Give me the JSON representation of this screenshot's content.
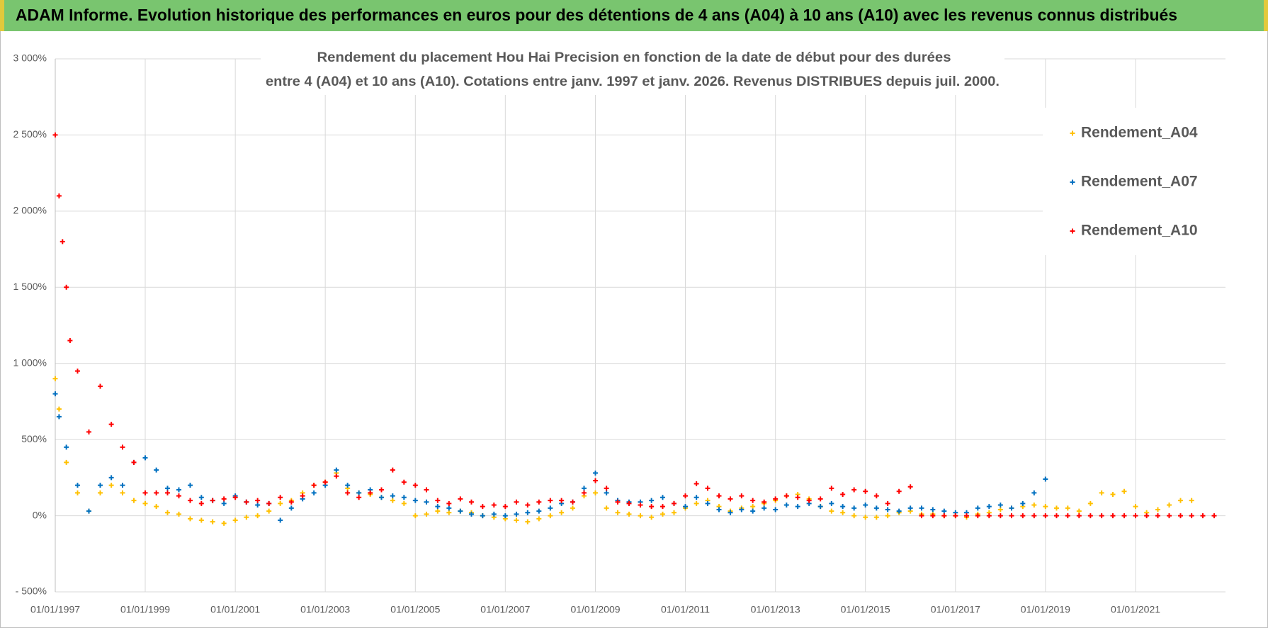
{
  "chart_data": {
    "type": "scatter",
    "title": "ADAM Informe. Evolution historique des performances en euros pour des détentions de 4 ans (A04) à 10 ans (A10) avec les revenus connus distribués",
    "subtitle": [
      "Rendement du placement Hou Hai Precision  en fonction de la date de début pour des durées",
      "entre 4 (A04) et 10 ans (A10).  Cotations entre janv. 1997 et janv. 2026. Revenus DISTRIBUES depuis juil. 2000."
    ],
    "xlim": [
      "01/01/1997",
      "01/01/2023"
    ],
    "xticks": [
      "01/01/1997",
      "01/01/1999",
      "01/01/2001",
      "01/01/2003",
      "01/01/2005",
      "01/01/2007",
      "01/01/2009",
      "01/01/2011",
      "01/01/2013",
      "01/01/2015",
      "01/01/2017",
      "01/01/2019",
      "01/01/2021"
    ],
    "ylim": [
      -500,
      3000
    ],
    "yticks": [
      {
        "value": -500,
        "label": "- 500%"
      },
      {
        "value": 0,
        "label": "0%"
      },
      {
        "value": 500,
        "label": "500%"
      },
      {
        "value": 1000,
        "label": "1 000%"
      },
      {
        "value": 1500,
        "label": "1 500%"
      },
      {
        "value": 2000,
        "label": "2 000%"
      },
      {
        "value": 2500,
        "label": "2 500%"
      },
      {
        "value": 3000,
        "label": "3 000%"
      }
    ],
    "grid": true,
    "legend": "right",
    "series": [
      {
        "name": "Rendement_A04",
        "color": "#ffc000",
        "x": [
          "01/01/1997",
          "01/02/1997",
          "01/04/1997",
          "01/07/1997",
          "01/10/1997",
          "01/01/1998",
          "01/04/1998",
          "01/07/1998",
          "01/10/1998",
          "01/01/1999",
          "01/04/1999",
          "01/07/1999",
          "01/10/1999",
          "01/01/2000",
          "01/04/2000",
          "01/07/2000",
          "01/10/2000",
          "01/01/2001",
          "01/04/2001",
          "01/07/2001",
          "01/10/2001",
          "01/01/2002",
          "01/04/2002",
          "01/07/2002",
          "01/10/2002",
          "01/01/2003",
          "01/04/2003",
          "01/07/2003",
          "01/10/2003",
          "01/01/2004",
          "01/04/2004",
          "01/07/2004",
          "01/10/2004",
          "01/01/2005",
          "01/04/2005",
          "01/07/2005",
          "01/10/2005",
          "01/01/2006",
          "01/04/2006",
          "01/07/2006",
          "01/10/2006",
          "01/01/2007",
          "01/04/2007",
          "01/07/2007",
          "01/10/2007",
          "01/01/2008",
          "01/04/2008",
          "01/07/2008",
          "01/10/2008",
          "01/01/2009",
          "01/04/2009",
          "01/07/2009",
          "01/10/2009",
          "01/01/2010",
          "01/04/2010",
          "01/07/2010",
          "01/10/2010",
          "01/01/2011",
          "01/04/2011",
          "01/07/2011",
          "01/10/2011",
          "01/01/2012",
          "01/04/2012",
          "01/07/2012",
          "01/10/2012",
          "01/01/2013",
          "01/04/2013",
          "01/07/2013",
          "01/10/2013",
          "01/01/2014",
          "01/04/2014",
          "01/07/2014",
          "01/10/2014",
          "01/01/2015",
          "01/04/2015",
          "01/07/2015",
          "01/10/2015",
          "01/01/2016",
          "01/04/2016",
          "01/07/2016",
          "01/10/2016",
          "01/01/2017",
          "01/04/2017",
          "01/07/2017",
          "01/10/2017",
          "01/01/2018",
          "01/04/2018",
          "01/07/2018",
          "01/10/2018",
          "01/01/2019",
          "01/04/2019",
          "01/07/2019",
          "01/10/2019",
          "01/01/2020",
          "01/04/2020",
          "01/07/2020",
          "01/10/2020",
          "01/01/2021",
          "01/04/2021",
          "01/07/2021",
          "01/10/2021",
          "01/01/2022",
          "01/04/2022"
        ],
        "values": [
          900,
          700,
          350,
          150,
          30,
          150,
          200,
          150,
          100,
          80,
          60,
          20,
          10,
          -20,
          -30,
          -40,
          -50,
          -30,
          -10,
          0,
          30,
          80,
          100,
          150,
          200,
          220,
          280,
          180,
          150,
          140,
          120,
          100,
          80,
          0,
          10,
          30,
          20,
          30,
          20,
          0,
          -10,
          -20,
          -30,
          -40,
          -20,
          0,
          20,
          50,
          130,
          150,
          50,
          20,
          10,
          0,
          -10,
          10,
          20,
          50,
          80,
          100,
          60,
          30,
          50,
          60,
          80,
          100,
          130,
          140,
          110,
          60,
          30,
          20,
          0,
          -10,
          -10,
          0,
          20,
          30,
          10,
          10,
          0,
          0,
          -10,
          10,
          20,
          40,
          50,
          60,
          70,
          60,
          50,
          50,
          30,
          80,
          150,
          140,
          160,
          60,
          20,
          40,
          70,
          100,
          100
        ]
      },
      {
        "name": "Rendement_A07",
        "color": "#0070c0",
        "x": [
          "01/01/1997",
          "01/02/1997",
          "01/04/1997",
          "01/07/1997",
          "01/10/1997",
          "01/01/1998",
          "01/04/1998",
          "01/07/1998",
          "01/10/1998",
          "01/01/1999",
          "01/04/1999",
          "01/07/1999",
          "01/10/1999",
          "01/01/2000",
          "01/04/2000",
          "01/07/2000",
          "01/10/2000",
          "01/01/2001",
          "01/04/2001",
          "01/07/2001",
          "01/10/2001",
          "01/01/2002",
          "01/04/2002",
          "01/07/2002",
          "01/10/2002",
          "01/01/2003",
          "01/04/2003",
          "01/07/2003",
          "01/10/2003",
          "01/01/2004",
          "01/04/2004",
          "01/07/2004",
          "01/10/2004",
          "01/01/2005",
          "01/04/2005",
          "01/07/2005",
          "01/10/2005",
          "01/01/2006",
          "01/04/2006",
          "01/07/2006",
          "01/10/2006",
          "01/01/2007",
          "01/04/2007",
          "01/07/2007",
          "01/10/2007",
          "01/01/2008",
          "01/04/2008",
          "01/07/2008",
          "01/10/2008",
          "01/01/2009",
          "01/04/2009",
          "01/07/2009",
          "01/10/2009",
          "01/01/2010",
          "01/04/2010",
          "01/07/2010",
          "01/10/2010",
          "01/01/2011",
          "01/04/2011",
          "01/07/2011",
          "01/10/2011",
          "01/01/2012",
          "01/04/2012",
          "01/07/2012",
          "01/10/2012",
          "01/01/2013",
          "01/04/2013",
          "01/07/2013",
          "01/10/2013",
          "01/01/2014",
          "01/04/2014",
          "01/07/2014",
          "01/10/2014",
          "01/01/2015",
          "01/04/2015",
          "01/07/2015",
          "01/10/2015",
          "01/01/2016",
          "01/04/2016",
          "01/07/2016",
          "01/10/2016",
          "01/01/2017",
          "01/04/2017",
          "01/07/2017",
          "01/10/2017",
          "01/01/2018",
          "01/04/2018",
          "01/07/2018",
          "01/10/2018",
          "01/01/2019"
        ],
        "values": [
          800,
          650,
          450,
          200,
          30,
          200,
          250,
          200,
          350,
          380,
          300,
          180,
          170,
          200,
          120,
          100,
          80,
          130,
          90,
          70,
          80,
          -30,
          50,
          110,
          150,
          200,
          300,
          200,
          150,
          170,
          120,
          130,
          120,
          100,
          90,
          60,
          50,
          30,
          10,
          0,
          10,
          0,
          10,
          20,
          30,
          50,
          80,
          90,
          180,
          280,
          150,
          100,
          90,
          90,
          100,
          120,
          80,
          60,
          120,
          80,
          40,
          20,
          40,
          30,
          50,
          40,
          70,
          60,
          80,
          60,
          80,
          60,
          50,
          70,
          50,
          40,
          30,
          50,
          50,
          40,
          30,
          20,
          20,
          50,
          60,
          70,
          50,
          80,
          150,
          240
        ]
      },
      {
        "name": "Rendement_A10",
        "color": "#ff0000",
        "x": [
          "01/01/1997",
          "01/02/1997",
          "01/03/1997",
          "01/04/1997",
          "01/05/1997",
          "01/07/1997",
          "01/10/1997",
          "01/01/1998",
          "01/04/1998",
          "01/07/1998",
          "01/10/1998",
          "01/01/1999",
          "01/04/1999",
          "01/07/1999",
          "01/10/1999",
          "01/01/2000",
          "01/04/2000",
          "01/07/2000",
          "01/10/2000",
          "01/01/2001",
          "01/04/2001",
          "01/07/2001",
          "01/10/2001",
          "01/01/2002",
          "01/04/2002",
          "01/07/2002",
          "01/10/2002",
          "01/01/2003",
          "01/04/2003",
          "01/07/2003",
          "01/10/2003",
          "01/01/2004",
          "01/04/2004",
          "01/07/2004",
          "01/10/2004",
          "01/01/2005",
          "01/04/2005",
          "01/07/2005",
          "01/10/2005",
          "01/01/2006",
          "01/04/2006",
          "01/07/2006",
          "01/10/2006",
          "01/01/2007",
          "01/04/2007",
          "01/07/2007",
          "01/10/2007",
          "01/01/2008",
          "01/04/2008",
          "01/07/2008",
          "01/10/2008",
          "01/01/2009",
          "01/04/2009",
          "01/07/2009",
          "01/10/2009",
          "01/01/2010",
          "01/04/2010",
          "01/07/2010",
          "01/10/2010",
          "01/01/2011",
          "01/04/2011",
          "01/07/2011",
          "01/10/2011",
          "01/01/2012",
          "01/04/2012",
          "01/07/2012",
          "01/10/2012",
          "01/01/2013",
          "01/04/2013",
          "01/07/2013",
          "01/10/2013",
          "01/01/2014",
          "01/04/2014",
          "01/07/2014",
          "01/10/2014",
          "01/01/2015",
          "01/04/2015",
          "01/07/2015",
          "01/10/2015",
          "01/01/2016",
          "01/04/2016",
          "01/07/2016",
          "01/10/2016",
          "01/01/2017",
          "01/04/2017",
          "01/07/2017",
          "01/10/2017",
          "01/01/2018",
          "01/04/2018",
          "01/07/2018",
          "01/10/2018",
          "01/01/2019",
          "01/04/2019",
          "01/07/2019",
          "01/10/2019",
          "01/01/2020",
          "01/04/2020",
          "01/07/2020",
          "01/10/2020",
          "01/01/2021",
          "01/04/2021",
          "01/07/2021",
          "01/10/2021",
          "01/01/2022",
          "01/04/2022",
          "01/07/2022",
          "01/10/2022"
        ],
        "values": [
          2500,
          2100,
          1800,
          1500,
          1150,
          950,
          550,
          850,
          600,
          450,
          350,
          150,
          150,
          150,
          130,
          100,
          80,
          100,
          110,
          120,
          90,
          100,
          80,
          120,
          90,
          130,
          200,
          220,
          260,
          150,
          120,
          150,
          170,
          300,
          220,
          200,
          170,
          100,
          80,
          110,
          90,
          60,
          70,
          60,
          90,
          70,
          90,
          100,
          100,
          90,
          150,
          230,
          180,
          90,
          80,
          70,
          60,
          60,
          80,
          130,
          210,
          180,
          130,
          110,
          130,
          100,
          90,
          110,
          130,
          120,
          100,
          110,
          180,
          140,
          170,
          160,
          130,
          80,
          160,
          190,
          0,
          0,
          0,
          0,
          0,
          0,
          0,
          0,
          0,
          0,
          0,
          0,
          0,
          0,
          0,
          0,
          0,
          0,
          0,
          0,
          0,
          0,
          0,
          0,
          0,
          0,
          0
        ]
      }
    ]
  }
}
